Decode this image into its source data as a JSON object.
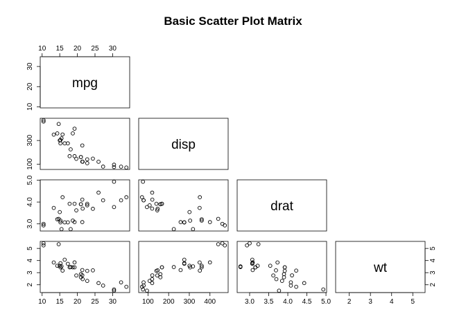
{
  "title": "Basic Scatter Plot Matrix",
  "chart_data": {
    "type": "scatter",
    "layout": "lower-triangle scatter plot matrix",
    "title": "Basic Scatter Plot Matrix",
    "grid": false,
    "variables": [
      {
        "name": "mpg",
        "range": [
          10.4,
          33.9
        ],
        "ticks": [
          10,
          15,
          20,
          25,
          30
        ],
        "diag_ticks": [
          10,
          20,
          30
        ]
      },
      {
        "name": "disp",
        "range": [
          71.1,
          472
        ],
        "ticks": [
          100,
          200,
          300,
          400
        ],
        "diag_ticks": [
          100,
          300
        ]
      },
      {
        "name": "drat",
        "range": [
          2.76,
          4.93
        ],
        "ticks": [
          3.0,
          3.5,
          4.0,
          4.5,
          5.0
        ],
        "tick_labels": [
          "3.0",
          "3.5",
          "4.0",
          "4.5",
          "5.0"
        ],
        "diag_ticks": [
          3.0,
          4.0,
          5.0
        ],
        "diag_tick_labels": [
          "3.0",
          "4.0",
          "5.0"
        ]
      },
      {
        "name": "wt",
        "range": [
          1.513,
          5.424
        ],
        "ticks": [
          2,
          3,
          4,
          5
        ],
        "diag_ticks": [
          2,
          3,
          4,
          5
        ]
      }
    ],
    "data": {
      "mpg": [
        21.0,
        21.0,
        22.8,
        21.4,
        18.7,
        18.1,
        14.3,
        24.4,
        22.8,
        19.2,
        17.8,
        16.4,
        17.3,
        15.2,
        10.4,
        10.4,
        14.7,
        32.4,
        30.4,
        33.9,
        21.5,
        15.5,
        15.2,
        13.3,
        19.2,
        27.3,
        26.0,
        30.4,
        15.8,
        19.7,
        15.0,
        21.4
      ],
      "disp": [
        160,
        160,
        108,
        258,
        360,
        225,
        360,
        146.7,
        140.8,
        167.6,
        167.6,
        275.8,
        275.8,
        275.8,
        472,
        460,
        440,
        78.7,
        75.7,
        71.1,
        120.1,
        318,
        304,
        350,
        400,
        79,
        120.3,
        95.1,
        351,
        145,
        301,
        121
      ],
      "drat": [
        3.9,
        3.9,
        3.85,
        3.08,
        3.15,
        2.76,
        3.21,
        3.69,
        3.92,
        3.92,
        3.92,
        3.07,
        3.07,
        3.07,
        2.93,
        3.0,
        3.23,
        4.08,
        4.93,
        4.22,
        3.7,
        2.76,
        3.15,
        3.73,
        3.08,
        4.08,
        4.43,
        3.77,
        4.22,
        3.62,
        3.54,
        4.11
      ],
      "wt": [
        2.62,
        2.875,
        2.32,
        3.215,
        3.44,
        3.46,
        3.57,
        3.19,
        3.15,
        3.44,
        3.44,
        4.07,
        3.73,
        3.78,
        5.25,
        5.424,
        5.345,
        2.2,
        1.615,
        1.835,
        2.465,
        3.52,
        3.435,
        3.84,
        3.845,
        1.935,
        2.14,
        1.513,
        3.17,
        2.77,
        3.57,
        2.78
      ]
    }
  }
}
